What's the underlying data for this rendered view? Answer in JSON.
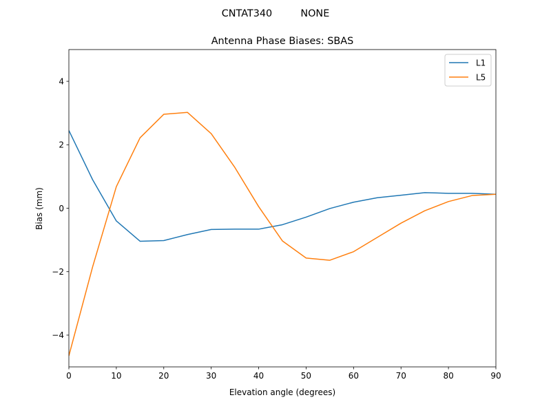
{
  "figure": {
    "suptitle": "CNTAT340         NONE"
  },
  "chart_data": {
    "type": "line",
    "title": "Antenna Phase Biases: SBAS",
    "xlabel": "Elevation angle (degrees)",
    "ylabel": "Bias (mm)",
    "xlim": [
      0,
      90
    ],
    "ylim": [
      -5,
      5
    ],
    "xticks": [
      0,
      10,
      20,
      30,
      40,
      50,
      60,
      70,
      80,
      90
    ],
    "xtick_labels": [
      "0",
      "10",
      "20",
      "30",
      "40",
      "50",
      "60",
      "70",
      "80",
      "90"
    ],
    "yticks": [
      -4,
      -2,
      0,
      2,
      4
    ],
    "ytick_labels": [
      "−4",
      "−2",
      "0",
      "2",
      "4"
    ],
    "grid": false,
    "legend_position": "top-right",
    "x": [
      0,
      5,
      10,
      15,
      20,
      25,
      30,
      35,
      40,
      45,
      50,
      55,
      60,
      65,
      70,
      75,
      80,
      85,
      90
    ],
    "series": [
      {
        "name": "L1",
        "color": "#1f77b4",
        "values": [
          2.45,
          0.9,
          -0.4,
          -1.04,
          -1.02,
          -0.83,
          -0.67,
          -0.66,
          -0.66,
          -0.52,
          -0.28,
          -0.01,
          0.19,
          0.33,
          0.41,
          0.49,
          0.47,
          0.47,
          0.44
        ]
      },
      {
        "name": "L5",
        "color": "#ff7f0e",
        "values": [
          -4.65,
          -1.85,
          0.68,
          2.22,
          2.96,
          3.02,
          2.35,
          1.28,
          0.05,
          -1.03,
          -1.57,
          -1.64,
          -1.37,
          -0.92,
          -0.47,
          -0.08,
          0.21,
          0.4,
          0.44
        ]
      }
    ]
  }
}
